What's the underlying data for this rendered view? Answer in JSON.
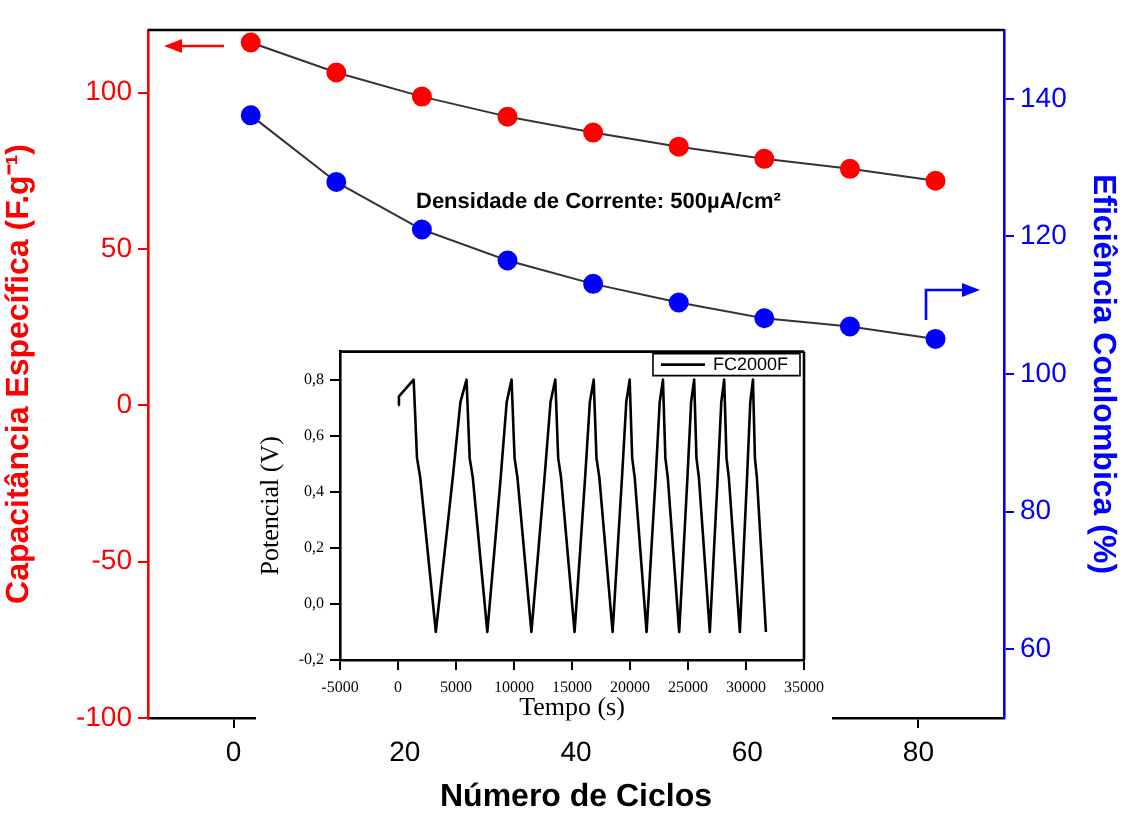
{
  "chart_data": [
    {
      "type": "line",
      "xlabel": "Número de Ciclos",
      "ylabel": "Capacitância Específica (F.g⁻¹)",
      "y2label": "Eficiência Coulombica (%)",
      "annotations": [
        "Densidade de Corrente: 500µA/cm²"
      ],
      "x": [
        2,
        12,
        22,
        32,
        42,
        52,
        62,
        72,
        82
      ],
      "series": [
        {
          "color": "#ff0000",
          "values": [
            116,
            106.4,
            98.7,
            92.3,
            87.2,
            82.7,
            78.8,
            75.6,
            71.8
          ]
        },
        {
          "color": "#0000ff",
          "axis": "y2",
          "values": [
            137.6,
            127.9,
            121,
            116.5,
            113.1,
            110.4,
            108.1,
            106.9,
            105.1
          ]
        }
      ],
      "xlim": [
        -10,
        90
      ],
      "xticks": [
        0,
        20,
        40,
        60,
        80
      ],
      "ylim": [
        -100,
        120
      ],
      "yticks": [
        -100,
        -50,
        0,
        50,
        100
      ],
      "y2lim": [
        50,
        150
      ],
      "y2ticks": [
        60,
        80,
        100,
        120,
        140
      ],
      "marker": "circle",
      "grid": false,
      "legend": false
    },
    {
      "type": "line",
      "xlabel": "Tempo (s)",
      "ylabel": "Potencial (V)",
      "x": [
        0,
        80,
        1350,
        1640,
        1920,
        3260,
        4060,
        4720,
        5380,
        5910,
        6180,
        6450,
        7700,
        8330,
        8850,
        9370,
        9790,
        10050,
        10300,
        11500,
        12120,
        12630,
        13150,
        13560,
        13810,
        14060,
        15220,
        15720,
        16130,
        16540,
        16870,
        17110,
        17360,
        18500,
        18940,
        19310,
        19680,
        19970,
        20190,
        20410,
        21430,
        21850,
        22210,
        22560,
        22840,
        23050,
        23260,
        24240,
        24630,
        24950,
        25270,
        25530,
        25730,
        25940,
        26880,
        27250,
        27560,
        27870,
        28120,
        28320,
        28520,
        29470,
        29810,
        30090,
        30370,
        30600,
        30770,
        30940,
        31720
      ],
      "series": [
        {
          "name": "FC2000F",
          "color": "#000000",
          "values": [
            0.71,
            0.74,
            0.8,
            0.52,
            0.45,
            -0.1,
            0.2,
            0.45,
            0.72,
            0.8,
            0.52,
            0.45,
            -0.1,
            0.2,
            0.45,
            0.72,
            0.8,
            0.52,
            0.45,
            -0.1,
            0.2,
            0.45,
            0.72,
            0.8,
            0.52,
            0.45,
            -0.1,
            0.2,
            0.45,
            0.72,
            0.8,
            0.52,
            0.45,
            -0.1,
            0.2,
            0.45,
            0.72,
            0.8,
            0.52,
            0.45,
            -0.1,
            0.2,
            0.45,
            0.72,
            0.8,
            0.52,
            0.45,
            -0.1,
            0.2,
            0.45,
            0.72,
            0.8,
            0.52,
            0.45,
            -0.1,
            0.2,
            0.45,
            0.72,
            0.8,
            0.52,
            0.45,
            -0.1,
            0.2,
            0.45,
            0.72,
            0.8,
            0.52,
            0.45,
            -0.1
          ]
        }
      ],
      "xlim": [
        -5000,
        35000
      ],
      "xticks": [
        -5000,
        0,
        5000,
        10000,
        15000,
        20000,
        25000,
        30000,
        35000
      ],
      "ylim": [
        -0.2,
        0.9
      ],
      "yticks": [
        {
          "value": -0.2,
          "label": "-0,2"
        },
        {
          "value": 0,
          "label": "0,0"
        },
        {
          "value": 0.2,
          "label": "0,2"
        },
        {
          "value": 0.4,
          "label": "0,4"
        },
        {
          "value": 0.6,
          "label": "0,6"
        },
        {
          "value": 0.8,
          "label": "0,8"
        }
      ],
      "marker": "none",
      "grid": false,
      "legend": "top right"
    }
  ]
}
